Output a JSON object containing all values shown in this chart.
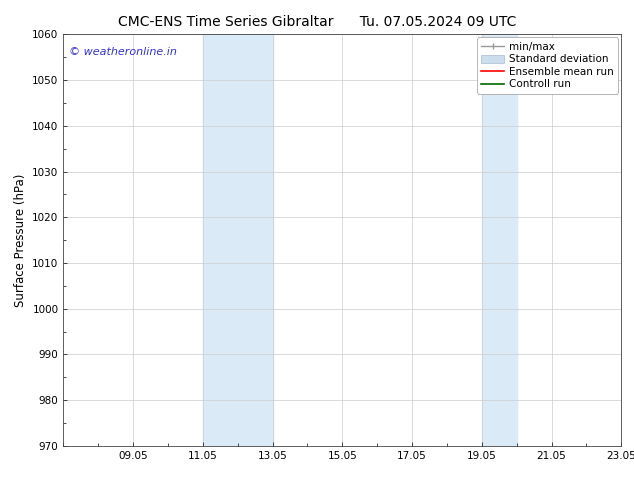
{
  "title_left": "CMC-ENS Time Series Gibraltar",
  "title_right": "Tu. 07.05.2024 09 UTC",
  "ylabel": "Surface Pressure (hPa)",
  "ylim": [
    970,
    1060
  ],
  "yticks": [
    970,
    980,
    990,
    1000,
    1010,
    1020,
    1030,
    1040,
    1050,
    1060
  ],
  "xlim": [
    0,
    16
  ],
  "xtick_labels": [
    "09.05",
    "11.05",
    "13.05",
    "15.05",
    "17.05",
    "19.05",
    "21.05",
    "23.05"
  ],
  "xtick_positions": [
    2,
    4,
    6,
    8,
    10,
    12,
    14,
    16
  ],
  "shaded_bands": [
    {
      "x_start": 4,
      "x_end": 6,
      "color": "#daeaf7"
    },
    {
      "x_start": 12,
      "x_end": 13,
      "color": "#daeaf7"
    }
  ],
  "watermark_text": "© weatheronline.in",
  "watermark_color": "#3333cc",
  "bg_color": "#ffffff",
  "grid_color": "#cccccc",
  "font_family": "DejaVu Sans",
  "font_size_title": 10,
  "font_size_ticks": 7.5,
  "font_size_ylabel": 8.5,
  "font_size_legend": 7.5,
  "font_size_watermark": 8
}
